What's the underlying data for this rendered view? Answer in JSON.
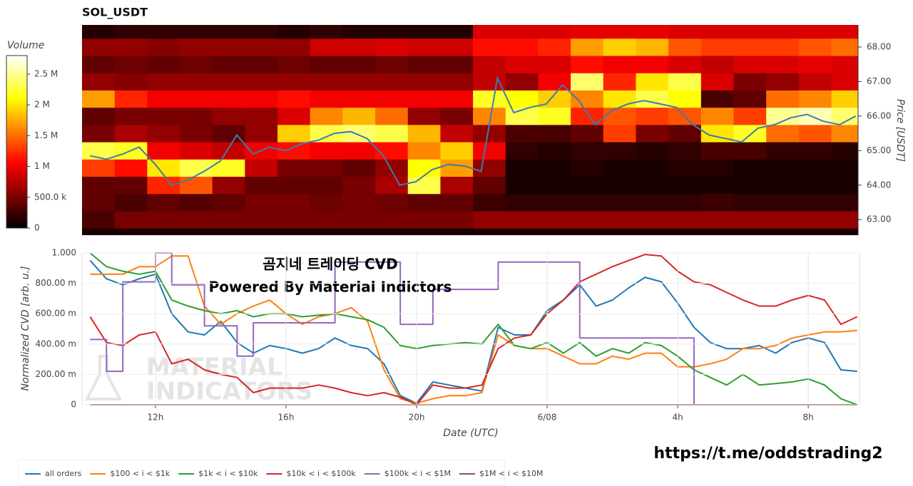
{
  "watermark": [
    "MATERIAL",
    "INDICATORS"
  ],
  "link": "https://t.me/oddstrading2",
  "chart_data": [
    {
      "type": "heatmap",
      "title": "SOL_USDT",
      "colorbar_title": "Volume",
      "y_label": "Price [USDT]",
      "x": [
        10.25,
        11.25,
        12.25,
        13.25,
        14.25,
        15.25,
        16.25,
        17.25,
        18.25,
        19.25,
        20.25,
        21.25,
        22.25,
        23.25,
        24.25,
        25.25,
        26.25,
        27.25,
        28.25,
        29.25,
        30.25,
        31.25,
        32.25,
        33.25
      ],
      "y": [
        63,
        63.5,
        64,
        64.5,
        65,
        65.5,
        66,
        66.5,
        67,
        67.5,
        68,
        68.5
      ],
      "z": [
        [
          0.3,
          0.5,
          0.5,
          0.5,
          0.5,
          0.5,
          0.5,
          0.5,
          0.5,
          0.5,
          0.5,
          0.5,
          0.6,
          0.6,
          0.6,
          0.6,
          0.6,
          0.6,
          0.6,
          0.6,
          0.6,
          0.6,
          0.6,
          0.6
        ],
        [
          0.4,
          0.3,
          0.4,
          0.35,
          0.4,
          0.5,
          0.5,
          0.45,
          0.5,
          0.45,
          0.4,
          0.4,
          0.25,
          0.2,
          0.2,
          0.2,
          0.2,
          0.2,
          0.2,
          0.25,
          0.2,
          0.2,
          0.2,
          0.2
        ],
        [
          0.4,
          0.4,
          1.2,
          1.4,
          0.6,
          0.4,
          0.4,
          0.4,
          0.5,
          0.7,
          2.3,
          0.7,
          0.4,
          0.1,
          0.1,
          0.1,
          0.1,
          0.1,
          0.1,
          0.1,
          0.1,
          0.1,
          0.1,
          0.1
        ],
        [
          1.3,
          1.1,
          2,
          2.3,
          2.2,
          0.8,
          0.5,
          0.5,
          0.4,
          0.6,
          2.1,
          1.7,
          0.6,
          0.1,
          0.1,
          0.15,
          0.1,
          0.1,
          0.15,
          0.15,
          0.1,
          0.1,
          0.1,
          0.1
        ],
        [
          2.3,
          2.2,
          1,
          0.9,
          0.8,
          1,
          1.1,
          1,
          1,
          1.1,
          1.6,
          1.9,
          1,
          0.2,
          0.15,
          0.2,
          0.2,
          0.15,
          0.2,
          0.3,
          0.3,
          0.2,
          0.2,
          0.15
        ],
        [
          0.5,
          0.7,
          0.6,
          0.5,
          0.4,
          0.6,
          1.9,
          2.3,
          2.4,
          2.3,
          1.8,
          0.8,
          0.6,
          0.3,
          0.3,
          0.4,
          1.3,
          0.5,
          0.4,
          2,
          2.2,
          1.5,
          1.4,
          1.6
        ],
        [
          0.4,
          0.5,
          0.5,
          0.5,
          0.6,
          0.6,
          0.9,
          1.6,
          1.8,
          1.5,
          0.6,
          0.5,
          1.6,
          2.3,
          2.2,
          1.2,
          1.4,
          1.3,
          1.4,
          1.6,
          1.3,
          2.5,
          2.6,
          2.4
        ],
        [
          1.7,
          1.2,
          1,
          1,
          1,
          1,
          1.1,
          1,
          1,
          1,
          1,
          1,
          2.2,
          2.1,
          1.9,
          1.6,
          2,
          2.3,
          2.1,
          0.3,
          0.4,
          1.5,
          1.6,
          1.9
        ],
        [
          0.6,
          0.55,
          0.6,
          0.6,
          0.6,
          0.6,
          0.6,
          0.6,
          0.6,
          0.6,
          0.6,
          0.6,
          0.8,
          0.6,
          1,
          2.4,
          1.2,
          2,
          2.3,
          0.9,
          0.5,
          0.6,
          0.8,
          0.9
        ],
        [
          0.4,
          0.45,
          0.4,
          0.45,
          0.4,
          0.4,
          0.45,
          0.4,
          0.4,
          0.45,
          0.4,
          0.4,
          0.8,
          0.9,
          0.9,
          1.1,
          1,
          1,
          0.9,
          0.8,
          0.9,
          0.9,
          0.95,
          0.9
        ],
        [
          0.6,
          0.6,
          0.55,
          0.6,
          0.6,
          0.6,
          0.6,
          0.85,
          0.85,
          0.9,
          0.85,
          0.85,
          1.1,
          1.1,
          1.2,
          1.7,
          1.9,
          1.8,
          1.4,
          1.3,
          1.3,
          1.3,
          1.4,
          1.5
        ],
        [
          0.15,
          0.2,
          0.2,
          0.2,
          0.2,
          0.2,
          0.15,
          0.2,
          0.15,
          0.15,
          0.15,
          0.15,
          0.9,
          0.9,
          0.9,
          0.95,
          0.95,
          0.95,
          0.9,
          0.9,
          0.9,
          0.9,
          0.9,
          0.9
        ]
      ],
      "zlim": [
        0,
        2.8
      ],
      "zticks": [
        0,
        {
          "value": 0.5,
          "label": "500.0 k"
        },
        {
          "value": 1,
          "label": "1 M"
        },
        {
          "value": 1.5,
          "label": "1.5 M"
        },
        {
          "value": 2,
          "label": "2 M"
        },
        {
          "value": 2.5,
          "label": "2.5 M"
        }
      ],
      "xlim": [
        9.75,
        33.57
      ],
      "ylim": [
        62.55,
        68.64
      ],
      "yticks": [
        {
          "value": 63,
          "label": "63.00"
        },
        {
          "value": 64,
          "label": "64.00"
        },
        {
          "value": 65,
          "label": "65.00"
        },
        {
          "value": 66,
          "label": "66.00"
        },
        {
          "value": 67,
          "label": "67.00"
        },
        {
          "value": 68,
          "label": "68.00"
        }
      ],
      "line": {
        "color": "#3b7bb5",
        "x": [
          10,
          10.5,
          11,
          11.5,
          12,
          12.5,
          13,
          13.5,
          14,
          14.5,
          15,
          15.5,
          16,
          16.5,
          17,
          17.5,
          18,
          18.5,
          19,
          19.5,
          20,
          20.5,
          21,
          21.5,
          22,
          22.5,
          23,
          23.5,
          24,
          24.5,
          25,
          25.5,
          26,
          26.5,
          27,
          27.5,
          28,
          28.5,
          29,
          29.5,
          30,
          30.5,
          31,
          31.5,
          32,
          32.5,
          33,
          33.5
        ],
        "values": [
          64.85,
          64.75,
          64.9,
          65.1,
          64.6,
          64,
          64.15,
          64.4,
          64.7,
          65.45,
          64.9,
          65.1,
          65,
          65.2,
          65.3,
          65.5,
          65.55,
          65.35,
          64.85,
          64,
          64.1,
          64.45,
          64.6,
          64.55,
          64.4,
          67.1,
          66.1,
          66.25,
          66.35,
          66.9,
          66.45,
          65.75,
          66.15,
          66.35,
          66.45,
          66.35,
          66.25,
          65.75,
          65.45,
          65.35,
          65.25,
          65.65,
          65.75,
          65.95,
          66.05,
          65.85,
          65.75,
          66
        ]
      }
    },
    {
      "type": "line",
      "x_label": "Date (UTC)",
      "y_label": "Normalized CVD [arb. u.]",
      "annotations": [
        "곰지네 트레이딩 CVD",
        "Powered By Material Indictors"
      ],
      "x": [
        10,
        10.5,
        11,
        11.5,
        12,
        12.5,
        13,
        13.5,
        14,
        14.5,
        15,
        15.5,
        16,
        16.5,
        17,
        17.5,
        18,
        18.5,
        19,
        19.5,
        20,
        20.5,
        21,
        21.5,
        22,
        22.5,
        23,
        23.5,
        24,
        24.5,
        25,
        25.5,
        26,
        26.5,
        27,
        27.5,
        28,
        28.5,
        29,
        29.5,
        30,
        30.5,
        31,
        31.5,
        32,
        32.5,
        33,
        33.5
      ],
      "xlim": [
        9.75,
        33.57
      ],
      "xticks": [
        {
          "value": 12,
          "label": "12h"
        },
        {
          "value": 16,
          "label": "16h"
        },
        {
          "value": 20,
          "label": "20h"
        },
        {
          "value": 24,
          "label": "6/08"
        },
        {
          "value": 28,
          "label": "4h"
        },
        {
          "value": 32,
          "label": "8h"
        }
      ],
      "ylim": [
        0,
        1
      ],
      "yticks": [
        0,
        {
          "value": 0.2,
          "label": "200.00 m"
        },
        {
          "value": 0.4,
          "label": "400.00 m"
        },
        {
          "value": 0.6,
          "label": "600.00 m"
        },
        {
          "value": 0.8,
          "label": "800.00 m"
        },
        {
          "value": 1,
          "label": "1.000"
        }
      ],
      "grid": true,
      "legend": "bottom-left",
      "series": [
        {
          "name": "all orders",
          "color": "#1f77b4",
          "values": [
            0.95,
            0.83,
            0.79,
            0.83,
            0.86,
            0.6,
            0.48,
            0.46,
            0.55,
            0.41,
            0.34,
            0.39,
            0.37,
            0.34,
            0.37,
            0.44,
            0.39,
            0.37,
            0.27,
            0.06,
            0.01,
            0.15,
            0.13,
            0.11,
            0.09,
            0.51,
            0.46,
            0.46,
            0.62,
            0.69,
            0.79,
            0.65,
            0.69,
            0.77,
            0.84,
            0.81,
            0.67,
            0.51,
            0.41,
            0.37,
            0.37,
            0.39,
            0.34,
            0.41,
            0.44,
            0.41,
            0.23,
            0.22
          ]
        },
        {
          "name": "$100 < i < $1k",
          "color": "#ff7f0e",
          "values": [
            0.86,
            0.86,
            0.86,
            0.91,
            0.91,
            0.98,
            0.98,
            0.65,
            0.53,
            0.6,
            0.65,
            0.69,
            0.6,
            0.53,
            0.58,
            0.6,
            0.64,
            0.55,
            0.23,
            0.04,
            0.01,
            0.04,
            0.06,
            0.06,
            0.08,
            0.46,
            0.39,
            0.37,
            0.37,
            0.32,
            0.27,
            0.27,
            0.32,
            0.3,
            0.34,
            0.34,
            0.25,
            0.25,
            0.27,
            0.3,
            0.37,
            0.37,
            0.39,
            0.44,
            0.46,
            0.48,
            0.48,
            0.49
          ]
        },
        {
          "name": "$1k < i < $10k",
          "color": "#2ca02c",
          "values": [
            1,
            0.91,
            0.88,
            0.86,
            0.88,
            0.69,
            0.65,
            0.62,
            0.6,
            0.62,
            0.58,
            0.6,
            0.6,
            0.58,
            0.59,
            0.6,
            0.58,
            0.56,
            0.51,
            0.39,
            0.37,
            0.39,
            0.4,
            0.41,
            0.4,
            0.53,
            0.39,
            0.37,
            0.41,
            0.34,
            0.41,
            0.32,
            0.37,
            0.34,
            0.41,
            0.39,
            0.32,
            0.23,
            0.18,
            0.13,
            0.2,
            0.13,
            0.14,
            0.15,
            0.17,
            0.13,
            0.04,
            0
          ]
        },
        {
          "name": "$10k < i < $100k",
          "color": "#d62728",
          "values": [
            0.58,
            0.41,
            0.39,
            0.46,
            0.48,
            0.27,
            0.3,
            0.23,
            0.2,
            0.18,
            0.08,
            0.11,
            0.11,
            0.11,
            0.13,
            0.11,
            0.08,
            0.06,
            0.08,
            0.05,
            0,
            0.13,
            0.11,
            0.11,
            0.13,
            0.37,
            0.44,
            0.46,
            0.6,
            0.69,
            0.81,
            0.86,
            0.91,
            0.95,
            0.99,
            0.98,
            0.88,
            0.81,
            0.79,
            0.74,
            0.69,
            0.65,
            0.65,
            0.69,
            0.72,
            0.69,
            0.53,
            0.58
          ]
        },
        {
          "name": "$100k < i < $1M",
          "color": "#9467bd",
          "step": true,
          "values": [
            0.43,
            0.22,
            0.81,
            0.81,
            1,
            0.79,
            0.79,
            0.52,
            0.52,
            0.32,
            0.54,
            0.54,
            0.54,
            0.54,
            0.54,
            0.94,
            0.94,
            0.94,
            0.94,
            0.53,
            0.53,
            0.76,
            0.76,
            0.76,
            0.76,
            0.94,
            0.94,
            0.94,
            0.94,
            0.94,
            0.44,
            0.44,
            0.44,
            0.44,
            0.44,
            0.44,
            0.44,
            0,
            0,
            0,
            0,
            0,
            0,
            0,
            0,
            0,
            0,
            0
          ]
        },
        {
          "name": "$1M < i < $10M",
          "color": "#8c564b",
          "values": [
            0,
            0,
            0,
            0,
            0,
            0,
            0,
            0,
            0,
            0,
            0,
            0,
            0,
            0,
            0,
            0,
            0,
            0,
            0,
            0,
            0,
            0,
            0,
            0,
            0,
            0,
            0,
            0,
            0,
            0,
            0,
            0,
            0,
            0,
            0,
            0,
            0,
            0,
            0,
            0,
            0,
            0,
            0,
            0,
            0,
            0,
            0,
            0
          ]
        }
      ]
    }
  ]
}
